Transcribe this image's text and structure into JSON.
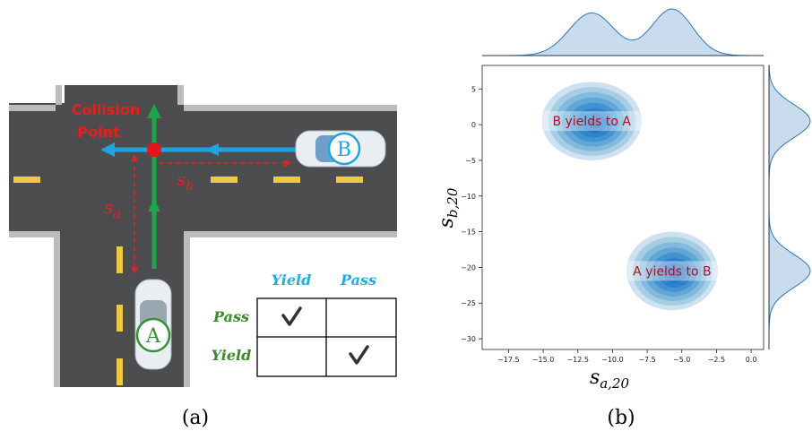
{
  "panel_a": {
    "collision_label": [
      "Collision",
      "Point"
    ],
    "sa_label": {
      "base": "s",
      "sub": "a"
    },
    "sb_label": {
      "base": "s",
      "sub": "b"
    },
    "car_a": "A",
    "car_b": "B",
    "table": {
      "columns": [
        "Yield",
        "Pass"
      ],
      "rows": [
        {
          "label": "Pass",
          "check_column": 0
        },
        {
          "label": "Yield",
          "check_column": 1
        }
      ]
    }
  },
  "chart_data": {
    "type": "kde_joint",
    "xlabel": {
      "base": "s",
      "sub": "a,20"
    },
    "ylabel": {
      "base": "s",
      "sub": "b,20"
    },
    "color": "#1f77b4",
    "clusters": [
      {
        "label": "B yields to A",
        "center_x": -11.5,
        "center_y": 0.5,
        "radius_x": 3.6,
        "radius_y": 5.5
      },
      {
        "label": "A yields to B",
        "center_x": -5.7,
        "center_y": -20.5,
        "radius_x": 3.3,
        "radius_y": 5.5
      }
    ],
    "xlim": [
      -19.4,
      0.9
    ],
    "ylim": [
      -31.5,
      8.3
    ],
    "xticks": [
      {
        "value": -17.5,
        "label": "−17.5"
      },
      {
        "value": -15,
        "label": "−15.0"
      },
      {
        "value": -12.5,
        "label": "−12.5"
      },
      {
        "value": -10,
        "label": "−10.0"
      },
      {
        "value": -7.5,
        "label": "−7.5"
      },
      {
        "value": -5,
        "label": "−5.0"
      },
      {
        "value": -2.5,
        "label": "−2.5"
      },
      {
        "value": 0,
        "label": "0.0"
      }
    ],
    "yticks": [
      5,
      0,
      {
        "value": -5,
        "label": "−5"
      },
      {
        "value": -10,
        "label": "−10"
      },
      {
        "value": -15,
        "label": "−15"
      },
      {
        "value": -20,
        "label": "−20"
      },
      {
        "value": -25,
        "label": "−25"
      },
      {
        "value": -30,
        "label": "−30"
      }
    ]
  },
  "captions": [
    "(a)",
    "(b)"
  ]
}
